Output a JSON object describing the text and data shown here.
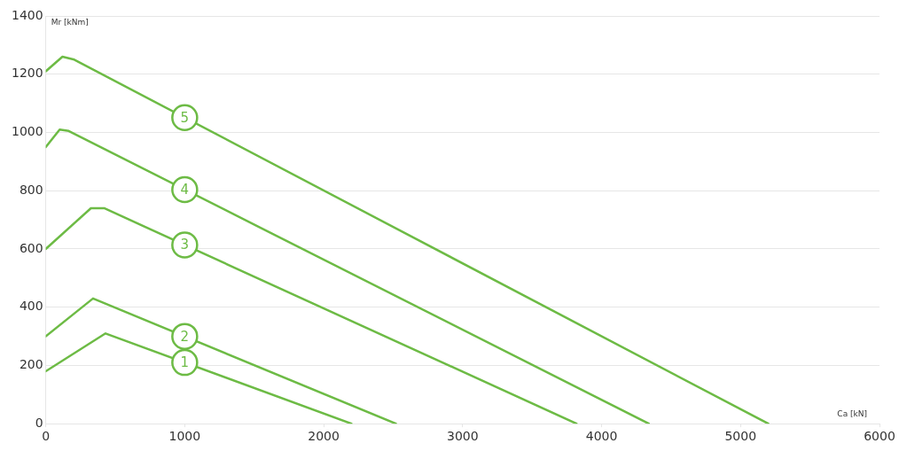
{
  "chart_data": {
    "type": "line",
    "xlabel": "Ca [kN]",
    "ylabel": "Mr [kNm]",
    "xlim": [
      0,
      6000
    ],
    "xticks": [
      0,
      1000,
      2000,
      3000,
      4000,
      5000,
      6000
    ],
    "ylim": [
      0,
      1400
    ],
    "yticks": [
      0,
      200,
      400,
      600,
      800,
      1000,
      1200,
      1400
    ],
    "grid": "y",
    "legend": "center",
    "marker": "none",
    "line_style": "solid",
    "series": [
      {
        "name": "1",
        "color": "#6dbb45",
        "x": [
          0,
          430,
          2200
        ],
        "values": [
          180,
          310,
          0
        ]
      },
      {
        "name": "2",
        "color": "#6dbb45",
        "x": [
          0,
          340,
          2520
        ],
        "values": [
          300,
          430,
          0
        ]
      },
      {
        "name": "3",
        "color": "#6dbb45",
        "x": [
          0,
          325,
          420,
          3820
        ],
        "values": [
          600,
          740,
          740,
          0
        ]
      },
      {
        "name": "4",
        "color": "#6dbb45",
        "x": [
          0,
          100,
          165,
          4340
        ],
        "values": [
          950,
          1010,
          1005,
          0
        ]
      },
      {
        "name": "5",
        "color": "#6dbb45",
        "x": [
          0,
          120,
          205,
          5200
        ],
        "values": [
          1210,
          1260,
          1250,
          0
        ]
      }
    ]
  }
}
